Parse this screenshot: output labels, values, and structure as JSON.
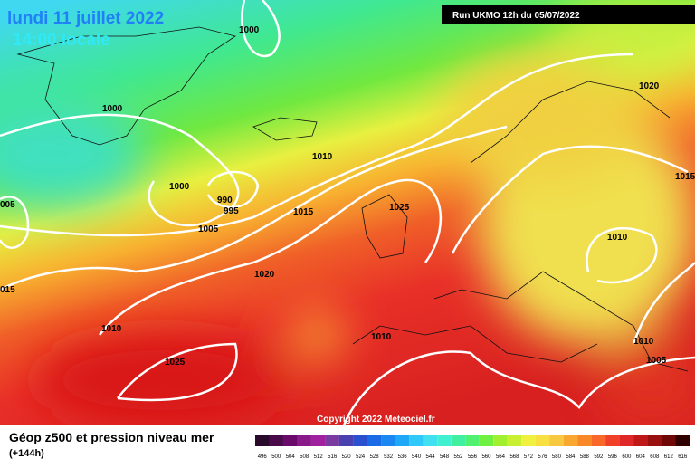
{
  "header": {
    "date": "lundi 11 juillet 2022",
    "time": "14:00 locale",
    "run": "Run UKMO 12h du 05/07/2022"
  },
  "isobars": {
    "labels": [
      "1000",
      "1020",
      "1000",
      "1010",
      "1015",
      "1000",
      "990",
      "995",
      "005",
      "1015",
      "1025",
      "1005",
      "1010",
      "1020",
      "015",
      "1010",
      "1010",
      "1010",
      "1005",
      "1025"
    ]
  },
  "copyright": "Copyright 2022 Meteociel.fr",
  "legend": {
    "title": "Géop z500 et pression niveau mer",
    "lead": "(+144h)",
    "ticks": [
      496,
      500,
      504,
      508,
      512,
      516,
      520,
      524,
      528,
      532,
      536,
      540,
      544,
      548,
      552,
      556,
      560,
      564,
      568,
      572,
      576,
      580,
      584,
      588,
      592,
      596,
      600,
      604,
      608,
      612,
      616
    ],
    "colors": [
      "#2a0a2a",
      "#4a0a4a",
      "#6a0a6a",
      "#8a1a8a",
      "#a020a0",
      "#7a3aa0",
      "#4a40b0",
      "#2a50d0",
      "#1a6ae8",
      "#1a88f0",
      "#20a8f8",
      "#30c8f8",
      "#40e0f0",
      "#40f0d0",
      "#40f0a0",
      "#50f070",
      "#70f040",
      "#a0f030",
      "#c8f030",
      "#f0f040",
      "#f8e040",
      "#f8c840",
      "#f8a830",
      "#f88828",
      "#f86828",
      "#f04028",
      "#e02828",
      "#c01818",
      "#981010",
      "#700808",
      "#300000"
    ]
  }
}
